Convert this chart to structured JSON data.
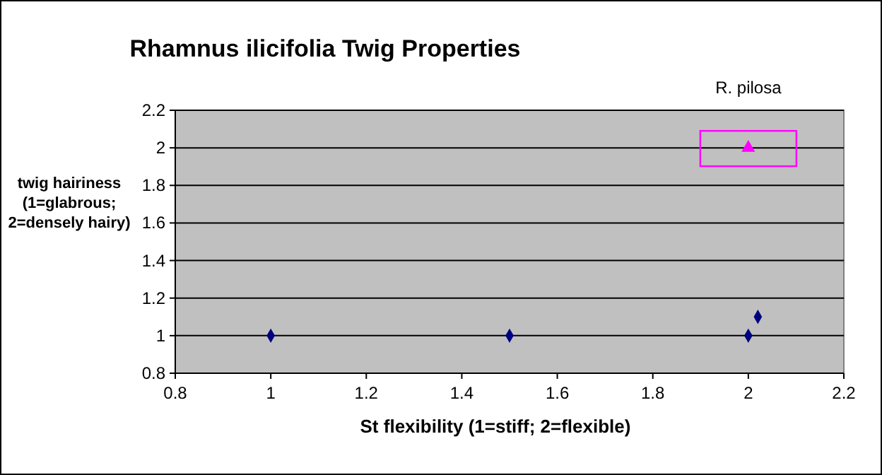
{
  "chart_data": {
    "type": "scatter",
    "title": "Rhamnus ilicifolia Twig Properties",
    "xlabel": "St flexibility (1=stiff; 2=flexible)",
    "ylabel": "twig hairiness (1=glabrous; 2=densely hairy)",
    "xlim": [
      0.8,
      2.2
    ],
    "xticks": [
      0.8,
      1,
      1.2,
      1.4,
      1.6,
      1.8,
      2,
      2.2
    ],
    "ylim": [
      0.8,
      2.2
    ],
    "yticks": [
      0.8,
      1,
      1.2,
      1.4,
      1.6,
      1.8,
      2,
      2.2
    ],
    "grid": "y",
    "series": [
      {
        "color": "#000080",
        "marker": "diamond",
        "x": [
          1,
          1.5,
          2,
          2.02
        ],
        "values": [
          1,
          1,
          1,
          1.1
        ]
      },
      {
        "color": "#ff00ff",
        "marker": "triangle",
        "x": [
          2
        ],
        "values": [
          2
        ]
      }
    ],
    "annotations": [
      {
        "text": "R. pilosa",
        "x": 2,
        "y": 2
      }
    ]
  }
}
